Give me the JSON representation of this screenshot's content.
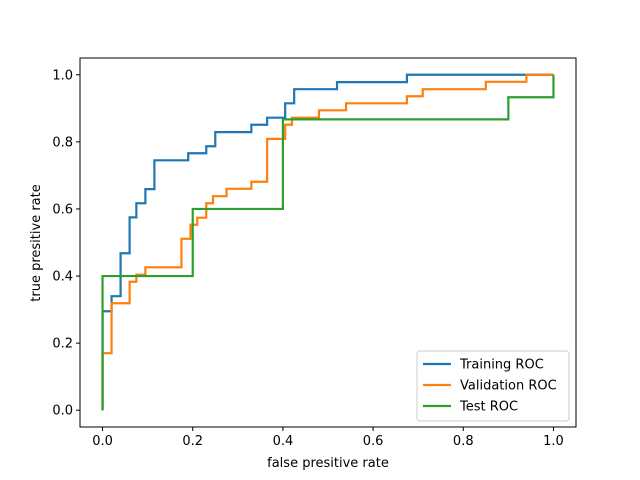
{
  "chart_data": {
    "type": "line",
    "title": "",
    "xlabel": "false presitive rate",
    "ylabel": "true presitive rate",
    "xlim": [
      -0.05,
      1.05
    ],
    "ylim": [
      -0.05,
      1.05
    ],
    "x_ticks": [
      0.0,
      0.2,
      0.4,
      0.6,
      0.8,
      1.0
    ],
    "y_ticks": [
      0.0,
      0.2,
      0.4,
      0.6,
      0.8,
      1.0
    ],
    "x_tick_labels": [
      "0.0",
      "0.2",
      "0.4",
      "0.6",
      "0.8",
      "1.0"
    ],
    "y_tick_labels": [
      "0.0",
      "0.2",
      "0.4",
      "0.6",
      "0.8",
      "1.0"
    ],
    "grid": false,
    "legend_position": "lower right",
    "series": [
      {
        "name": "Training ROC",
        "color": "#1f77b4",
        "x": [
          0.0,
          0.0,
          0.02,
          0.02,
          0.04,
          0.04,
          0.06,
          0.06,
          0.075,
          0.075,
          0.095,
          0.095,
          0.115,
          0.115,
          0.19,
          0.19,
          0.23,
          0.23,
          0.25,
          0.25,
          0.33,
          0.33,
          0.365,
          0.365,
          0.405,
          0.405,
          0.425,
          0.425,
          0.52,
          0.52,
          0.675,
          0.675,
          0.94,
          1.0
        ],
        "y": [
          0.0,
          0.295,
          0.295,
          0.34,
          0.34,
          0.468,
          0.468,
          0.575,
          0.575,
          0.617,
          0.617,
          0.659,
          0.659,
          0.745,
          0.745,
          0.766,
          0.766,
          0.787,
          0.787,
          0.829,
          0.829,
          0.851,
          0.851,
          0.872,
          0.872,
          0.915,
          0.915,
          0.957,
          0.957,
          0.978,
          0.978,
          1.0,
          1.0,
          1.0
        ]
      },
      {
        "name": "Validation ROC",
        "color": "#ff7f0e",
        "x": [
          0.0,
          0.0,
          0.02,
          0.02,
          0.06,
          0.06,
          0.075,
          0.075,
          0.095,
          0.095,
          0.175,
          0.175,
          0.195,
          0.195,
          0.21,
          0.21,
          0.23,
          0.23,
          0.245,
          0.245,
          0.26,
          0.26,
          0.275,
          0.275,
          0.33,
          0.33,
          0.365,
          0.365,
          0.405,
          0.405,
          0.42,
          0.42,
          0.48,
          0.48,
          0.54,
          0.54,
          0.675,
          0.675,
          0.71,
          0.71,
          0.85,
          0.85,
          0.94,
          0.94,
          1.0,
          1.0
        ],
        "y": [
          0.0,
          0.17,
          0.17,
          0.319,
          0.319,
          0.383,
          0.383,
          0.404,
          0.404,
          0.426,
          0.426,
          0.511,
          0.511,
          0.553,
          0.553,
          0.574,
          0.574,
          0.617,
          0.617,
          0.638,
          0.638,
          0.638,
          0.638,
          0.66,
          0.66,
          0.681,
          0.681,
          0.809,
          0.809,
          0.851,
          0.851,
          0.872,
          0.872,
          0.894,
          0.894,
          0.915,
          0.915,
          0.936,
          0.936,
          0.957,
          0.957,
          0.979,
          0.979,
          1.0,
          1.0,
          1.0
        ]
      },
      {
        "name": "Test ROC",
        "color": "#2ca02c",
        "x": [
          0.0,
          0.0,
          0.2,
          0.2,
          0.4,
          0.4,
          0.9,
          0.9,
          1.0,
          1.0
        ],
        "y": [
          0.0,
          0.4,
          0.4,
          0.6,
          0.6,
          0.867,
          0.867,
          0.933,
          0.933,
          1.0
        ]
      }
    ]
  }
}
